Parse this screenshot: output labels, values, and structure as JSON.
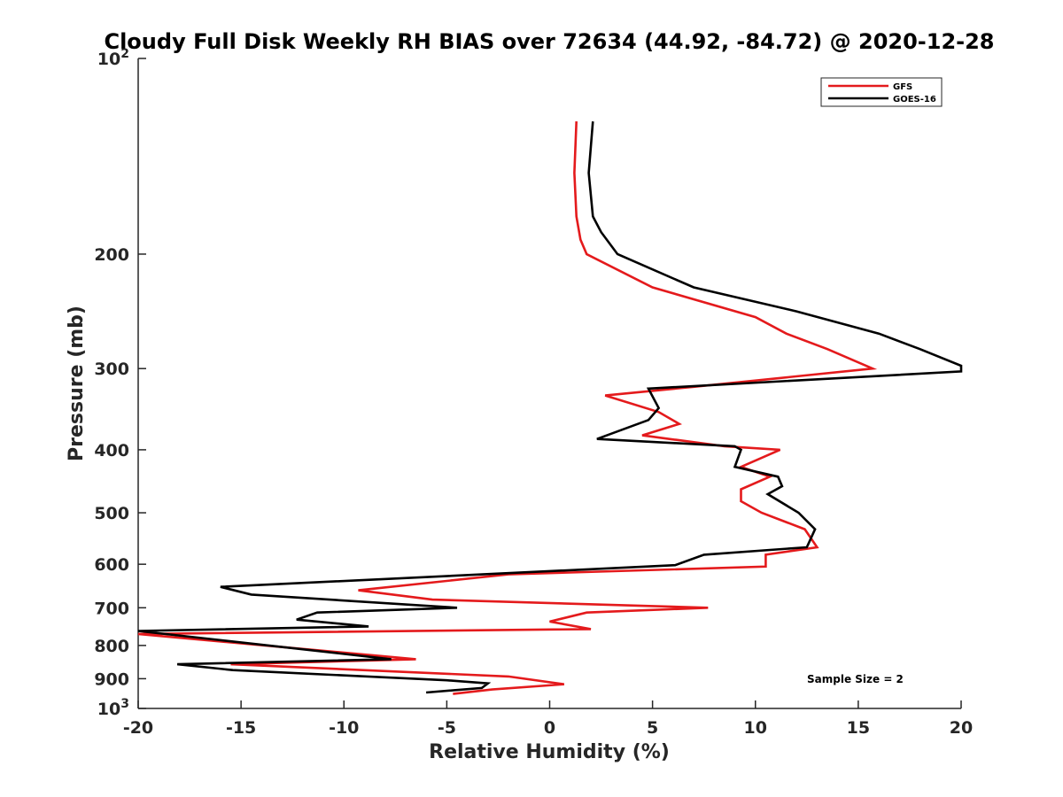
{
  "chart_data": {
    "type": "line",
    "title": "Cloudy Full Disk Weekly RH BIAS over 72634 (44.92, -84.72) @ 2020-12-28",
    "xlabel": "Relative Humidity (%)",
    "ylabel": "Pressure (mb)",
    "xlim": [
      -20,
      20
    ],
    "ylim": [
      100,
      1000
    ],
    "yscale": "log",
    "y_reversed": true,
    "x_ticks": [
      "-20",
      "-15",
      "-10",
      "-5",
      "0",
      "5",
      "10",
      "15",
      "20"
    ],
    "y_ticks": [
      {
        "value": 100,
        "base": "10",
        "exp": "2"
      },
      {
        "value": 200,
        "base": "200",
        "exp": ""
      },
      {
        "value": 300,
        "base": "300",
        "exp": ""
      },
      {
        "value": 400,
        "base": "400",
        "exp": ""
      },
      {
        "value": 500,
        "base": "500",
        "exp": ""
      },
      {
        "value": 600,
        "base": "600",
        "exp": ""
      },
      {
        "value": 700,
        "base": "700",
        "exp": ""
      },
      {
        "value": 800,
        "base": "800",
        "exp": ""
      },
      {
        "value": 900,
        "base": "900",
        "exp": ""
      },
      {
        "value": 1000,
        "base": "10",
        "exp": "3"
      }
    ],
    "legend_position": "top-right",
    "annotation": "Sample Size = 2",
    "series": [
      {
        "name": "GFS",
        "color": "#e41a1c",
        "points": [
          [
            1.3,
            125
          ],
          [
            1.2,
            150
          ],
          [
            1.3,
            175
          ],
          [
            1.5,
            190
          ],
          [
            1.8,
            200
          ],
          [
            5,
            225
          ],
          [
            10,
            250
          ],
          [
            11.5,
            265
          ],
          [
            13.5,
            280
          ],
          [
            15.7,
            300
          ],
          [
            7,
            320
          ],
          [
            2.7,
            330
          ],
          [
            5.3,
            350
          ],
          [
            6.3,
            365
          ],
          [
            4.5,
            380
          ],
          [
            8.5,
            395
          ],
          [
            11.2,
            400
          ],
          [
            9.3,
            425
          ],
          [
            10.7,
            440
          ],
          [
            9.3,
            460
          ],
          [
            9.3,
            480
          ],
          [
            10.3,
            500
          ],
          [
            12.4,
            530
          ],
          [
            13,
            565
          ],
          [
            10.5,
            580
          ],
          [
            10.5,
            605
          ],
          [
            -2,
            622
          ],
          [
            -9.3,
            658
          ],
          [
            -5.7,
            680
          ],
          [
            7.7,
            700
          ],
          [
            1.8,
            712
          ],
          [
            0,
            735
          ],
          [
            2,
            755
          ],
          [
            -20,
            768
          ],
          [
            -6.5,
            840
          ],
          [
            -15.5,
            855
          ],
          [
            -2,
            893
          ],
          [
            0.7,
            918
          ],
          [
            -2.8,
            935
          ],
          [
            -4.7,
            950
          ]
        ]
      },
      {
        "name": "GOES-16",
        "color": "#000000",
        "points": [
          [
            2.1,
            125
          ],
          [
            1.9,
            150
          ],
          [
            2.1,
            175
          ],
          [
            2.5,
            185
          ],
          [
            3.3,
            200
          ],
          [
            7,
            225
          ],
          [
            12,
            245
          ],
          [
            16,
            265
          ],
          [
            18,
            280
          ],
          [
            20,
            297
          ],
          [
            20,
            303
          ],
          [
            4.8,
            322
          ],
          [
            5.3,
            345
          ],
          [
            4.8,
            360
          ],
          [
            2.3,
            385
          ],
          [
            9,
            395
          ],
          [
            9.3,
            400
          ],
          [
            9,
            425
          ],
          [
            11.1,
            440
          ],
          [
            11.3,
            455
          ],
          [
            10.6,
            468
          ],
          [
            12.1,
            500
          ],
          [
            12.9,
            530
          ],
          [
            12.5,
            565
          ],
          [
            7.5,
            580
          ],
          [
            6.1,
            602
          ],
          [
            -16,
            650
          ],
          [
            -14.5,
            668
          ],
          [
            -4.5,
            700
          ],
          [
            -11.3,
            712
          ],
          [
            -12.3,
            730
          ],
          [
            -8.8,
            748
          ],
          [
            -20,
            760
          ],
          [
            -7.7,
            840
          ],
          [
            -18.1,
            855
          ],
          [
            -15.4,
            873
          ],
          [
            -5,
            905
          ],
          [
            -3,
            915
          ],
          [
            -3.3,
            930
          ],
          [
            -6,
            945
          ]
        ]
      }
    ]
  }
}
